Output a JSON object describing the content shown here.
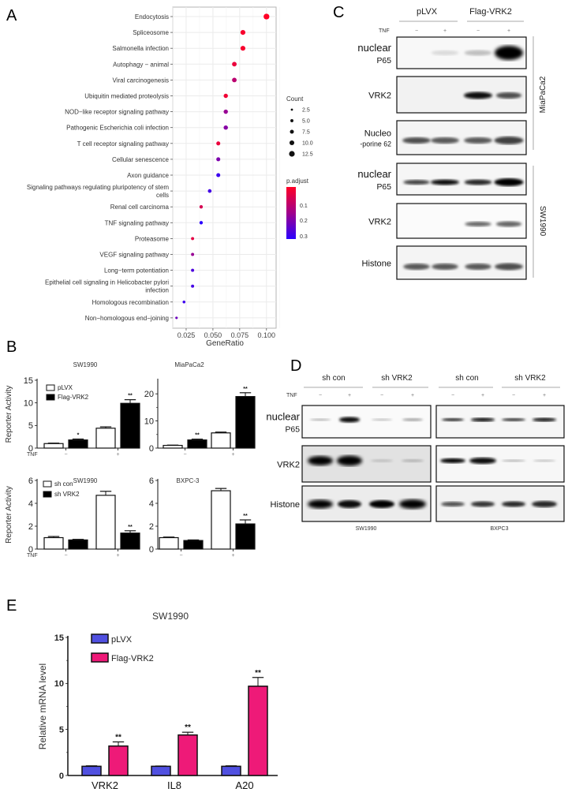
{
  "panel_labels": {
    "A": "A",
    "B": "B",
    "C": "C",
    "D": "D",
    "E": "E"
  },
  "chart_data": [
    {
      "panel": "A",
      "type": "scatter",
      "title": "",
      "xlabel": "GeneRatio",
      "ylabel": "",
      "xlim": [
        0.0125,
        0.109
      ],
      "xticks": [
        0.025,
        0.05,
        0.075,
        0.1
      ],
      "xtick_labels": [
        "0.025",
        "0.050",
        "0.075",
        "0.100"
      ],
      "grid": true,
      "legend_position": "right",
      "categories": [
        "Endocytosis",
        "Spliceosome",
        "Salmonella infection",
        "Autophagy − animal",
        "Viral carcinogenesis",
        "Ubiquitin mediated proteolysis",
        "NOD−like receptor signaling pathway",
        "Pathogenic Escherichia coli infection",
        "T cell receptor signaling pathway",
        "Cellular senescence",
        "Axon guidance",
        "Signaling pathways regulating pluripotency of stem cells",
        "Renal cell carcinoma",
        "TNF signaling pathway",
        "Proteasome",
        "VEGF signaling pathway",
        "Long−term potentiation",
        "Epithelial cell signaling in Helicobacter pylori infection",
        "Homologous recombination",
        "Non−homologous end−joining"
      ],
      "gene_ratio": [
        0.1,
        0.078,
        0.078,
        0.07,
        0.07,
        0.062,
        0.062,
        0.062,
        0.055,
        0.055,
        0.055,
        0.047,
        0.039,
        0.039,
        0.031,
        0.031,
        0.031,
        0.031,
        0.023,
        0.016
      ],
      "count": [
        13,
        10,
        10,
        9,
        9,
        8,
        8,
        8,
        7,
        7,
        7,
        6,
        5,
        5,
        4,
        4,
        4,
        4,
        3,
        2
      ],
      "p_adjust": [
        0.02,
        0.03,
        0.03,
        0.05,
        0.12,
        0.04,
        0.17,
        0.19,
        0.05,
        0.2,
        0.28,
        0.27,
        0.08,
        0.3,
        0.06,
        0.17,
        0.26,
        0.27,
        0.28,
        0.22
      ],
      "legend_count": {
        "title": "Count",
        "entries": [
          "2.5",
          "5.0",
          "7.5",
          "10.0",
          "12.5"
        ]
      },
      "legend_padjust": {
        "title": "p.adjust",
        "ticks": [
          "0.1",
          "0.2",
          "0.3"
        ],
        "color_low": "#ff0026",
        "color_high": "#2a00ff"
      }
    },
    {
      "panel": "B1",
      "type": "bar",
      "title": "SW1990",
      "ylabel": "Reporter Activity",
      "ylim": [
        0,
        15
      ],
      "yticks": [
        "0",
        "5",
        "10",
        "15"
      ],
      "row_label": "TNF",
      "categories": [
        "−",
        "+"
      ],
      "series": [
        {
          "name": "pLVX",
          "values": [
            1.0,
            4.4
          ],
          "errors": [
            0.1,
            0.3
          ],
          "sig": [
            "",
            ""
          ]
        },
        {
          "name": "Flag-VRK2",
          "values": [
            1.8,
            9.9
          ],
          "errors": [
            0.2,
            0.8
          ],
          "sig": [
            "*",
            "**"
          ]
        }
      ]
    },
    {
      "panel": "B2",
      "type": "bar",
      "title": "MiaPaCa2",
      "ylabel": "",
      "ylim": [
        0,
        25
      ],
      "yticks": [
        "0",
        "10",
        "20"
      ],
      "row_label": "",
      "categories": [
        "−",
        "+"
      ],
      "series": [
        {
          "name": "pLVX",
          "values": [
            1.0,
            5.6
          ],
          "errors": [
            0.1,
            0.3
          ],
          "sig": [
            "",
            ""
          ]
        },
        {
          "name": "Flag-VRK2",
          "values": [
            3.0,
            19.0
          ],
          "errors": [
            0.3,
            1.4
          ],
          "sig": [
            "**",
            "**"
          ]
        }
      ]
    },
    {
      "panel": "B3",
      "type": "bar",
      "title": "SW1990",
      "ylabel": "Reporter Activity",
      "ylim": [
        0,
        6
      ],
      "yticks": [
        "0",
        "2",
        "4",
        "6"
      ],
      "row_label": "TNF",
      "categories": [
        "−",
        "+"
      ],
      "series": [
        {
          "name": "sh con",
          "values": [
            1.0,
            4.7
          ],
          "errors": [
            0.1,
            0.35
          ],
          "sig": [
            "",
            ""
          ]
        },
        {
          "name": "sh VRK2",
          "values": [
            0.8,
            1.4
          ],
          "errors": [
            0.05,
            0.2
          ],
          "sig": [
            "",
            "**"
          ]
        }
      ]
    },
    {
      "panel": "B4",
      "type": "bar",
      "title": "BXPC-3",
      "ylabel": "",
      "ylim": [
        0,
        6
      ],
      "yticks": [
        "0",
        "2",
        "4",
        "6"
      ],
      "row_label": "",
      "categories": [
        "−",
        "+"
      ],
      "series": [
        {
          "name": "sh con",
          "values": [
            1.0,
            5.1
          ],
          "errors": [
            0.05,
            0.2
          ],
          "sig": [
            "",
            ""
          ]
        },
        {
          "name": "sh VRK2",
          "values": [
            0.75,
            2.2
          ],
          "errors": [
            0.05,
            0.35
          ],
          "sig": [
            "",
            "**"
          ]
        }
      ]
    },
    {
      "panel": "E",
      "type": "bar",
      "title": "SW1990",
      "xlabel": "",
      "ylabel": "Relative mRNA level",
      "ylim": [
        0,
        15
      ],
      "yticks": [
        "0",
        "5",
        "10",
        "15"
      ],
      "categories": [
        "VRK2",
        "IL8",
        "A20"
      ],
      "series": [
        {
          "name": "pLVX",
          "color": "#5050e0",
          "values": [
            1.0,
            1.0,
            1.0
          ],
          "errors": [
            0.05,
            0.03,
            0.05
          ],
          "sig": [
            "",
            "",
            ""
          ]
        },
        {
          "name": "Flag-VRK2",
          "color": "#ee1a78",
          "values": [
            3.2,
            4.4,
            9.7
          ],
          "errors": [
            0.45,
            0.3,
            0.95
          ],
          "sig": [
            "**",
            "**",
            "**"
          ]
        }
      ]
    }
  ],
  "blot_C": {
    "groups": [
      "pLVX",
      "Flag-VRK2"
    ],
    "tnf_label": "TNF",
    "tnf_lanes": [
      "−",
      "+",
      "−",
      "+"
    ],
    "rows": [
      {
        "label_line1": "nuclear",
        "label_line2": "P65"
      },
      {
        "label_line1": "VRK2",
        "label_line2": ""
      },
      {
        "label_line1": "Nucleo",
        "label_line2": "-porine 62"
      },
      {
        "label_line1": "nuclear",
        "label_line2": "P65"
      },
      {
        "label_line1": "VRK2",
        "label_line2": ""
      },
      {
        "label_line1": "Histone",
        "label_line2": ""
      }
    ],
    "cell_lines": [
      "MiaPaCa2",
      "SW1990"
    ]
  },
  "blot_D": {
    "groups": [
      "sh con",
      "sh VRK2",
      "sh con",
      "sh VRK2"
    ],
    "tnf_label": "TNF",
    "tnf_lanes": [
      "−",
      "+",
      "−",
      "+",
      "−",
      "+",
      "−",
      "+"
    ],
    "rows": [
      {
        "label_line1": "nuclear",
        "label_line2": "P65"
      },
      {
        "label_line1": "VRK2",
        "label_line2": ""
      },
      {
        "label_line1": "Histone",
        "label_line2": ""
      }
    ],
    "cell_lines": [
      "SW1990",
      "BXPC3"
    ]
  }
}
